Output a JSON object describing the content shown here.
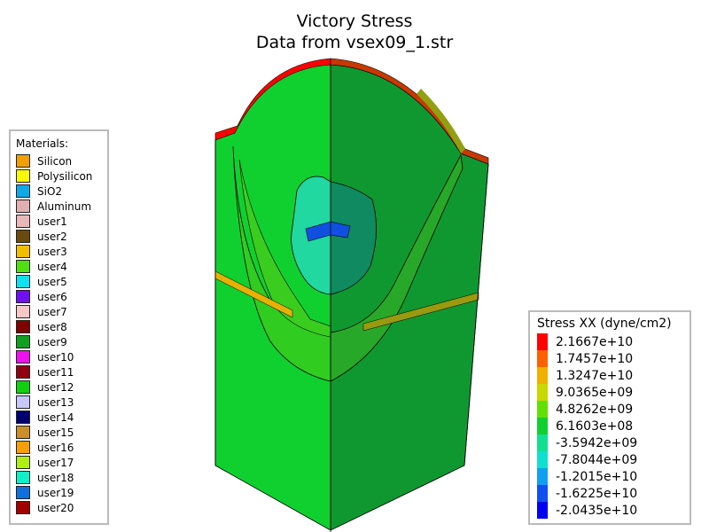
{
  "title": "Victory Stress",
  "subtitle": "Data from vsex09_1.str",
  "materials": {
    "title": "Materials:",
    "items": [
      {
        "label": "Silicon",
        "color": "#f0a000"
      },
      {
        "label": "Polysilicon",
        "color": "#f8f800"
      },
      {
        "label": "SiO2",
        "color": "#10a8e8"
      },
      {
        "label": "Aluminum",
        "color": "#e0b0b0"
      },
      {
        "label": "user1",
        "color": "#e8b8b8"
      },
      {
        "label": "user2",
        "color": "#6b4a10"
      },
      {
        "label": "user3",
        "color": "#f0c000"
      },
      {
        "label": "user4",
        "color": "#50e010"
      },
      {
        "label": "user5",
        "color": "#10e0f0"
      },
      {
        "label": "user6",
        "color": "#7010f0"
      },
      {
        "label": "user7",
        "color": "#f8c8c8"
      },
      {
        "label": "user8",
        "color": "#800000"
      },
      {
        "label": "user9",
        "color": "#10a020"
      },
      {
        "label": "user10",
        "color": "#f010f0"
      },
      {
        "label": "user11",
        "color": "#900010"
      },
      {
        "label": "user12",
        "color": "#10d010"
      },
      {
        "label": "user13",
        "color": "#c8c8f8"
      },
      {
        "label": "user14",
        "color": "#000070"
      },
      {
        "label": "user15",
        "color": "#c89028"
      },
      {
        "label": "user16",
        "color": "#f8a000"
      },
      {
        "label": "user17",
        "color": "#b0f010"
      },
      {
        "label": "user18",
        "color": "#10f0c8"
      },
      {
        "label": "user19",
        "color": "#1070e0"
      },
      {
        "label": "user20",
        "color": "#a00000"
      }
    ]
  },
  "stress_legend": {
    "title": "Stress XX (dyne/cm2)",
    "levels": [
      {
        "label": "2.1667e+10",
        "color": "#ff0000"
      },
      {
        "label": "1.7457e+10",
        "color": "#ff6000"
      },
      {
        "label": "1.3247e+10",
        "color": "#f0b000"
      },
      {
        "label": "9.0365e+09",
        "color": "#c8d800"
      },
      {
        "label": "4.8262e+09",
        "color": "#60e000"
      },
      {
        "label": "6.1603e+08",
        "color": "#10d030"
      },
      {
        "label": "-3.5942e+09",
        "color": "#10e090"
      },
      {
        "label": "-7.8044e+09",
        "color": "#10e0d0"
      },
      {
        "label": "-1.2015e+10",
        "color": "#10a0f0"
      },
      {
        "label": "-1.6225e+10",
        "color": "#1050f0"
      },
      {
        "label": "-2.0435e+10",
        "color": "#0000f0"
      }
    ]
  },
  "chart_data": {
    "type": "heatmap",
    "title": "Victory Stress",
    "subtitle": "Data from vsex09_1.str",
    "colorbar_label": "Stress XX (dyne/cm2)",
    "colorbar_ticks": [
      21667000000.0,
      17457000000.0,
      13247000000.0,
      9036500000.0,
      4826200000.0,
      616030000.0,
      -3594200000.0,
      -7804400000.0,
      -12015000000.0,
      -16225000000.0,
      -20435000000.0
    ],
    "colors": {
      "left_face": "#10d030",
      "right_face": "#109830",
      "top_stripe": "#ff0000",
      "band": "#f0b000",
      "outline": "#000000"
    }
  }
}
